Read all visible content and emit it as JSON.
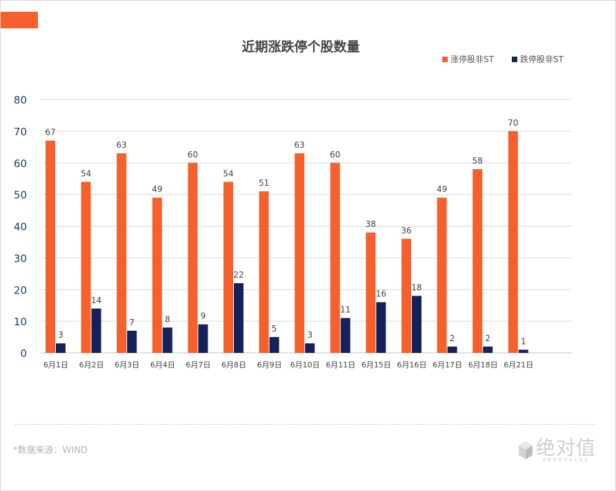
{
  "page": {
    "source_note": "*数据来源：WIND",
    "logo_cn": "绝对值",
    "logo_en": "ABSOVALUE"
  },
  "colors": {
    "accent": "#f5602c",
    "series_up": "#f5602c",
    "series_down": "#14215a",
    "axis_text": "#1f3b73",
    "grid": "#d9d9d9"
  },
  "chart_data": {
    "type": "bar",
    "title": "近期涨跌停个股数量",
    "xlabel": "",
    "ylabel": "",
    "ylim": [
      0,
      80
    ],
    "yticks": [
      0,
      10,
      20,
      30,
      40,
      50,
      60,
      70,
      80
    ],
    "grid": true,
    "legend_position": "top-right",
    "categories": [
      "6月1日",
      "6月2日",
      "6月3日",
      "6月4日",
      "6月7日",
      "6月8日",
      "6月9日",
      "6月10日",
      "6月11日",
      "6月15日",
      "6月16日",
      "6月17日",
      "6月18日",
      "6月21日"
    ],
    "series": [
      {
        "name": "涨停股非ST",
        "color": "#f5602c",
        "values": [
          67,
          54,
          63,
          49,
          60,
          54,
          51,
          63,
          60,
          38,
          36,
          49,
          58,
          70
        ]
      },
      {
        "name": "跌停股非ST",
        "color": "#14215a",
        "values": [
          3,
          14,
          7,
          8,
          9,
          22,
          5,
          3,
          11,
          16,
          18,
          2,
          2,
          1
        ]
      }
    ]
  }
}
